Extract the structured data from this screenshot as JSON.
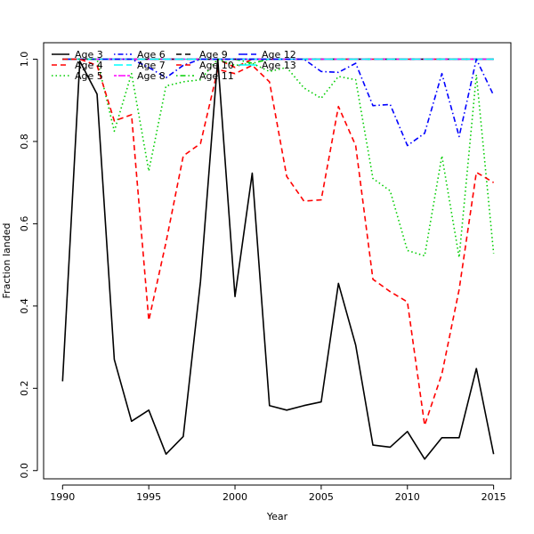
{
  "chart_data": {
    "type": "line",
    "xlabel": "Year",
    "ylabel": "Fraction landed",
    "xlim": [
      1988.9,
      2016.0
    ],
    "ylim": [
      -0.02,
      1.04
    ],
    "xticks": [
      1990,
      1995,
      2000,
      2005,
      2010,
      2015
    ],
    "yticks": [
      0.0,
      0.2,
      0.4,
      0.6,
      0.8,
      1.0
    ],
    "xtick_labels": [
      "1990",
      "1995",
      "2000",
      "2005",
      "2010",
      "2015"
    ],
    "ytick_labels": [
      "0.0",
      "0.2",
      "0.4",
      "0.6",
      "0.8",
      "1.0"
    ],
    "grid": false,
    "legend_position": "top-left",
    "x": [
      1990,
      1991,
      1992,
      1993,
      1994,
      1995,
      1996,
      1997,
      1998,
      1999,
      2000,
      2001,
      2002,
      2003,
      2004,
      2005,
      2006,
      2007,
      2008,
      2009,
      2010,
      2011,
      2012,
      2013,
      2014,
      2015
    ],
    "series": [
      {
        "name": "Age 3",
        "color": "#000000",
        "dash": "solid",
        "values": [
          0.217,
          0.995,
          0.915,
          0.27,
          0.12,
          0.147,
          0.04,
          0.083,
          0.46,
          1.0,
          0.423,
          0.723,
          0.158,
          0.147,
          0.158,
          0.167,
          0.455,
          0.305,
          0.062,
          0.057,
          0.095,
          0.028,
          0.08,
          0.08,
          0.248,
          0.04
        ]
      },
      {
        "name": "Age 4",
        "color": "#ff0000",
        "dash": "dashed",
        "values": [
          1.0,
          1.0,
          0.985,
          0.85,
          0.865,
          0.365,
          0.555,
          0.765,
          0.795,
          0.975,
          0.965,
          0.985,
          0.945,
          0.715,
          0.655,
          0.658,
          0.885,
          0.79,
          0.465,
          0.435,
          0.41,
          0.11,
          0.235,
          0.44,
          0.725,
          0.7
        ]
      },
      {
        "name": "Age 5",
        "color": "#00cd00",
        "dash": "dotted",
        "values": [
          1.0,
          1.0,
          1.0,
          0.825,
          0.965,
          0.728,
          0.935,
          0.945,
          0.95,
          1.0,
          0.985,
          0.99,
          0.97,
          0.98,
          0.93,
          0.905,
          0.958,
          0.95,
          0.71,
          0.68,
          0.535,
          0.522,
          0.765,
          0.518,
          0.962,
          0.528
        ]
      },
      {
        "name": "Age 6",
        "color": "#0000ff",
        "dash": "dotdash",
        "values": [
          1.0,
          1.0,
          1.0,
          1.0,
          1.0,
          0.98,
          0.955,
          0.985,
          1.0,
          1.0,
          1.0,
          1.0,
          1.0,
          1.0,
          1.0,
          0.97,
          0.968,
          0.99,
          0.887,
          0.89,
          0.79,
          0.82,
          0.965,
          0.812,
          1.0,
          0.912
        ]
      },
      {
        "name": "Age 7",
        "color": "#00ffff",
        "dash": "longdash",
        "values": [
          1.0,
          1.0,
          1.0,
          1.0,
          1.0,
          1.0,
          1.0,
          1.0,
          1.0,
          1.0,
          1.0,
          1.0,
          1.0,
          1.0,
          1.0,
          1.0,
          1.0,
          1.0,
          1.0,
          1.0,
          1.0,
          1.0,
          1.0,
          1.0,
          1.0,
          1.0
        ]
      },
      {
        "name": "Age 8",
        "color": "#ff00ff",
        "dash": "twodash",
        "values": [
          1.0,
          1.0,
          1.0,
          1.0,
          1.0,
          1.0,
          1.0,
          1.0,
          1.0,
          1.0,
          1.0,
          1.0,
          1.0,
          1.0,
          1.0,
          1.0,
          1.0,
          1.0,
          1.0,
          1.0,
          1.0,
          1.0,
          1.0,
          1.0,
          1.0,
          1.0
        ]
      },
      {
        "name": "Age 9",
        "color": "#000000",
        "dash": "dashed",
        "values": [
          1.0,
          1.0,
          1.0,
          1.0,
          1.0,
          1.0,
          1.0,
          1.0,
          1.0,
          1.0,
          1.0,
          1.0,
          1.0,
          1.0,
          1.0,
          1.0,
          1.0,
          1.0,
          1.0,
          1.0,
          1.0,
          1.0,
          1.0,
          1.0,
          1.0,
          1.0
        ]
      },
      {
        "name": "Age 10",
        "color": "#ff0000",
        "dash": "dashed",
        "values": [
          1.0,
          1.0,
          1.0,
          1.0,
          1.0,
          1.0,
          1.0,
          1.0,
          1.0,
          1.0,
          0.98,
          1.0,
          1.0,
          1.0,
          1.0,
          1.0,
          1.0,
          1.0,
          1.0,
          1.0,
          1.0,
          1.0,
          1.0,
          1.0,
          1.0,
          1.0
        ]
      },
      {
        "name": "Age 11",
        "color": "#00cd00",
        "dash": "dotdash",
        "values": [
          1.0,
          1.0,
          1.0,
          1.0,
          1.0,
          1.0,
          1.0,
          1.0,
          1.0,
          1.0,
          1.0,
          0.99,
          1.0,
          1.0,
          1.0,
          1.0,
          1.0,
          1.0,
          1.0,
          1.0,
          1.0,
          1.0,
          1.0,
          1.0,
          1.0,
          1.0
        ]
      },
      {
        "name": "Age 12",
        "color": "#0000ff",
        "dash": "longdash",
        "values": [
          1.0,
          1.0,
          1.0,
          1.0,
          1.0,
          1.0,
          1.0,
          1.0,
          1.0,
          1.0,
          1.0,
          1.0,
          1.0,
          1.0,
          1.0,
          1.0,
          1.0,
          1.0,
          1.0,
          1.0,
          1.0,
          1.0,
          1.0,
          1.0,
          1.0,
          1.0
        ]
      },
      {
        "name": "Age 13",
        "color": "#00ffff",
        "dash": "solid",
        "values": [
          1.0,
          1.0,
          1.0,
          1.0,
          1.0,
          1.0,
          1.0,
          1.0,
          1.0,
          1.0,
          1.0,
          1.0,
          1.0,
          1.0,
          1.0,
          1.0,
          1.0,
          1.0,
          1.0,
          1.0,
          1.0,
          1.0,
          1.0,
          1.0,
          1.0,
          1.0
        ]
      }
    ]
  }
}
